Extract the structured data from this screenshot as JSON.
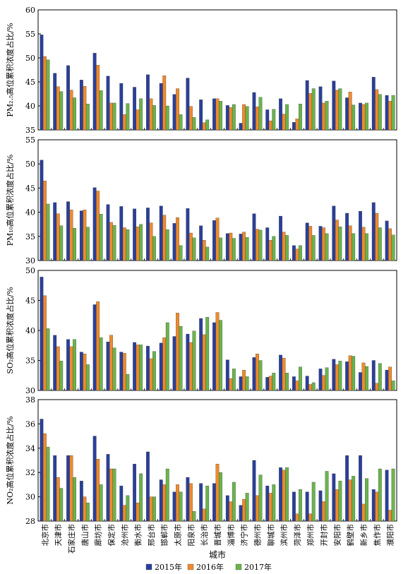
{
  "chart_data": {
    "type": "bar",
    "xlabel": "城市",
    "categories": [
      "北京市",
      "天津市",
      "石家庄市",
      "唐山市",
      "廊坊市",
      "保定市",
      "沧州市",
      "衡水市",
      "邢台市",
      "邯郸市",
      "太原市",
      "阳泉市",
      "长治市",
      "晋城市",
      "淄博市",
      "济宁市",
      "德州市",
      "聊城市",
      "滨州市",
      "菏泽市",
      "郑州市",
      "开封市",
      "安阳市",
      "鹤壁市",
      "新乡市",
      "焦作市",
      "濮阳市"
    ],
    "legend": {
      "placement": "bottom",
      "entries": [
        {
          "name": "2015年",
          "color": "#2a3f9a"
        },
        {
          "name": "2016年",
          "color": "#ef8a2b"
        },
        {
          "name": "2017年",
          "color": "#6ab44c"
        }
      ]
    },
    "panels": [
      {
        "ylabel": "PM₂.₅高位累积浓度占比/%",
        "ylim": [
          35,
          60
        ],
        "yticks": [
          35,
          40,
          45,
          50,
          55,
          60
        ],
        "series": [
          {
            "name": "2015年",
            "values": [
              54.8,
              46.8,
              48.4,
              45.4,
              51.0,
              46.2,
              44.7,
              43.9,
              46.5,
              44.7,
              42.4,
              45.8,
              41.3,
              41.5,
              40.1,
              36.4,
              42.8,
              39.2,
              41.5,
              36.6,
              45.3,
              44.0,
              45.2,
              41.7,
              40.6,
              46.0,
              42.2
            ]
          },
          {
            "name": "2016年",
            "values": [
              50.3,
              44.0,
              43.3,
              44.1,
              48.5,
              40.6,
              38.2,
              39.2,
              41.5,
              46.3,
              43.6,
              39.9,
              36.5,
              41.5,
              39.7,
              40.3,
              39.8,
              36.9,
              38.3,
              37.3,
              42.6,
              40.6,
              43.3,
              42.9,
              40.3,
              43.4,
              41.0
            ]
          },
          {
            "name": "2017年",
            "values": [
              49.6,
              43.0,
              41.7,
              40.4,
              43.2,
              40.6,
              40.5,
              41.5,
              40.1,
              40.0,
              38.2,
              37.6,
              37.1,
              41.0,
              40.3,
              39.9,
              41.8,
              39.3,
              40.3,
              40.4,
              43.6,
              41.0,
              43.6,
              40.2,
              40.6,
              42.4,
              42.2
            ]
          }
        ]
      },
      {
        "ylabel": "PM₁₀高位累积浓度占比/%",
        "ylim": [
          30,
          55
        ],
        "yticks": [
          30,
          35,
          40,
          45,
          50,
          55
        ],
        "series": [
          {
            "name": "2015年",
            "values": [
              50.8,
              42.0,
              42.2,
              40.3,
              45.1,
              41.6,
              41.2,
              40.7,
              40.9,
              41.3,
              37.7,
              40.8,
              37.2,
              38.3,
              35.6,
              35.5,
              39.7,
              36.8,
              39.2,
              33.1,
              37.8,
              37.1,
              41.3,
              39.8,
              40.2,
              42.0,
              38.2
            ]
          },
          {
            "name": "2016年",
            "values": [
              46.5,
              39.7,
              40.5,
              40.5,
              44.4,
              37.9,
              36.8,
              37.0,
              37.8,
              39.4,
              38.9,
              35.7,
              34.2,
              38.8,
              35.7,
              35.9,
              36.5,
              34.2,
              35.9,
              32.4,
              37.1,
              36.8,
              38.4,
              37.2,
              36.9,
              39.8,
              36.6
            ]
          },
          {
            "name": "2017年",
            "values": [
              41.7,
              37.2,
              36.7,
              36.9,
              39.6,
              37.3,
              36.4,
              37.5,
              35.0,
              36.4,
              33.1,
              34.7,
              32.8,
              34.7,
              34.6,
              34.8,
              36.3,
              35.0,
              35.2,
              33.1,
              35.2,
              35.6,
              37.0,
              35.6,
              35.6,
              36.8,
              35.3
            ]
          }
        ]
      },
      {
        "ylabel": "SO₂高位累积浓度占比/%",
        "ylim": [
          30,
          50
        ],
        "yticks": [
          30,
          35,
          40,
          45,
          50
        ],
        "series": [
          {
            "name": "2015年",
            "values": [
              48.9,
              39.2,
              38.5,
              36.4,
              44.3,
              38.1,
              36.4,
              38.0,
              37.4,
              37.9,
              39.0,
              39.4,
              42.0,
              41.3,
              35.1,
              32.3,
              35.5,
              32.2,
              35.9,
              32.3,
              32.4,
              33.6,
              35.2,
              34.8,
              33.0,
              35.0,
              33.4
            ]
          },
          {
            "name": "2016年",
            "values": [
              45.8,
              37.3,
              37.3,
              36.1,
              44.8,
              39.2,
              36.2,
              37.6,
              35.3,
              38.8,
              42.9,
              38.0,
              39.3,
              43.0,
              32.0,
              33.4,
              36.1,
              32.4,
              35.4,
              31.6,
              31.0,
              32.5,
              34.3,
              35.8,
              34.6,
              31.2,
              33.9
            ]
          },
          {
            "name": "2017年",
            "values": [
              40.3,
              34.9,
              38.5,
              34.3,
              38.8,
              37.1,
              32.7,
              37.6,
              36.5,
              41.3,
              40.7,
              39.9,
              42.2,
              41.7,
              33.6,
              32.3,
              35.0,
              32.9,
              32.9,
              33.9,
              31.3,
              33.8,
              34.9,
              35.7,
              34.0,
              34.5,
              31.6
            ]
          }
        ]
      },
      {
        "ylabel": "NO₂高位累积浓度占比/%",
        "ylim": [
          28,
          38
        ],
        "yticks": [
          28,
          30,
          32,
          34,
          36,
          38
        ],
        "series": [
          {
            "name": "2015年",
            "values": [
              36.4,
              33.4,
              33.4,
              31.3,
              35.0,
              33.5,
              30.9,
              32.7,
              33.7,
              31.4,
              30.4,
              31.6,
              31.1,
              31.1,
              30.1,
              29.3,
              33.0,
              30.9,
              32.4,
              30.4,
              30.4,
              30.5,
              31.9,
              33.4,
              33.4,
              30.6,
              32.2
            ]
          },
          {
            "name": "2016年",
            "values": [
              35.2,
              31.6,
              33.4,
              30.0,
              33.1,
              32.3,
              29.3,
              29.5,
              30.0,
              31.0,
              31.0,
              31.1,
              29.0,
              32.7,
              29.6,
              29.8,
              30.1,
              30.3,
              32.2,
              28.6,
              28.6,
              29.6,
              30.6,
              31.4,
              29.4,
              30.4,
              28.9
            ]
          },
          {
            "name": "2017年",
            "values": [
              34.1,
              30.7,
              31.6,
              29.5,
              31.0,
              32.3,
              30.1,
              31.9,
              30.0,
              32.3,
              30.4,
              28.8,
              30.9,
              32.0,
              31.2,
              30.3,
              31.8,
              31.0,
              32.4,
              30.6,
              31.2,
              32.1,
              31.3,
              31.7,
              31.5,
              32.3,
              32.3
            ]
          }
        ]
      }
    ]
  }
}
